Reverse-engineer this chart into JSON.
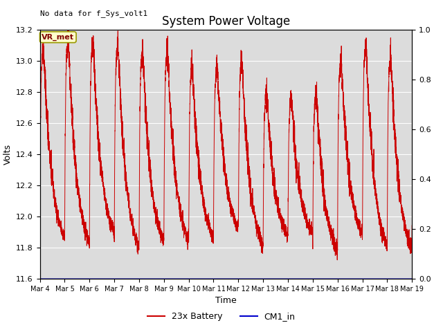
{
  "title": "System Power Voltage",
  "top_left_text": "No data for f_Sys_volt1",
  "ylabel_left": "Volts",
  "xlabel": "Time",
  "ylim_left": [
    11.6,
    13.2
  ],
  "ylim_right": [
    0.0,
    1.0
  ],
  "yticks_left": [
    11.6,
    11.8,
    12.0,
    12.2,
    12.4,
    12.6,
    12.8,
    13.0,
    13.2
  ],
  "yticks_right": [
    0.0,
    0.2,
    0.4,
    0.6,
    0.8,
    1.0
  ],
  "xtick_labels": [
    "Mar 4",
    "Mar 5",
    "Mar 6",
    "Mar 7",
    "Mar 8",
    "Mar 9",
    "Mar 10",
    "Mar 11",
    "Mar 12",
    "Mar 13",
    "Mar 14",
    "Mar 15",
    "Mar 16",
    "Mar 17",
    "Mar 18",
    "Mar 19"
  ],
  "legend_entries": [
    "23x Battery",
    "CM1_in"
  ],
  "legend_colors": [
    "#cc0000",
    "#0000cc"
  ],
  "vr_met_label": "VR_met",
  "vr_met_label_bg": "#ffffcc",
  "plot_bg": "#dcdcdc",
  "line_color_battery": "#cc0000",
  "line_color_cm1": "#0000cc",
  "title_fontsize": 12,
  "axis_fontsize": 9,
  "tick_fontsize": 8
}
